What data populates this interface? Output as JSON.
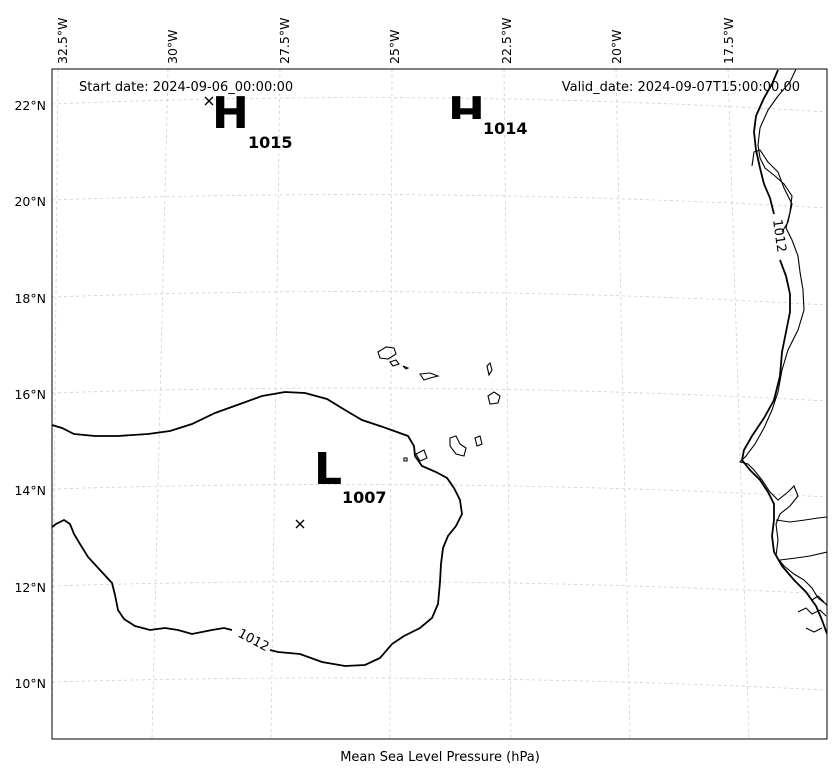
{
  "header": {
    "start_date": "Start date: 2024-09-06_00:00:00",
    "valid_date": "Valid_date: 2024-09-07T15:00:00.00"
  },
  "footer": {
    "caption": "Mean Sea Level Pressure (hPa)"
  },
  "axes": {
    "longitude_labels": [
      "32.5°W",
      "30°W",
      "27.5°W",
      "25°W",
      "22.5°W",
      "20°W",
      "17.5°W"
    ],
    "latitude_labels": [
      "22°N",
      "20°N",
      "18°N",
      "16°N",
      "14°N",
      "12°N",
      "10°N"
    ]
  },
  "pressure_systems": [
    {
      "type": "H",
      "value": "1015"
    },
    {
      "type": "H",
      "value": "1014"
    },
    {
      "type": "L",
      "value": "1007"
    }
  ],
  "isobar_labels": [
    "1012",
    "1012"
  ],
  "colors": {
    "isobar": "#000000",
    "coastline": "#000000",
    "gridline": "#cfcfcf"
  }
}
